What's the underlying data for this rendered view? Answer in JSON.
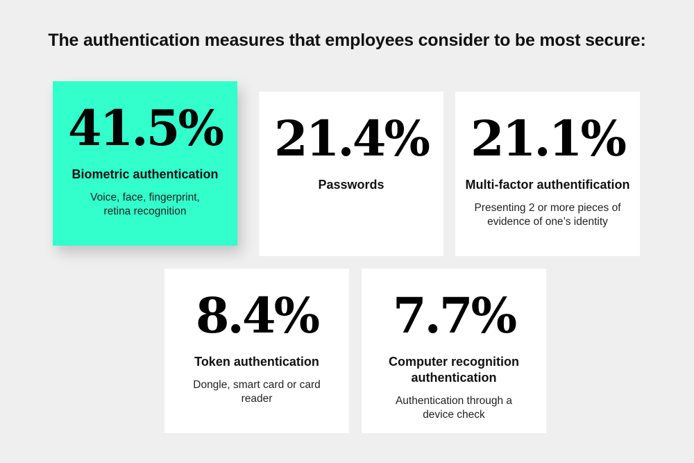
{
  "title": "The authentication measures that employees consider to be most secure:",
  "colors": {
    "background": "#efefef",
    "highlight": "#33ffcc",
    "card": "#ffffff"
  },
  "cards": [
    {
      "percent": "41.5%",
      "value": 41.5,
      "label": "Biometric authentication",
      "description": "Voice, face, fingerprint, retina recognition",
      "highlighted": true
    },
    {
      "percent": "21.4%",
      "value": 21.4,
      "label": "Passwords",
      "description": "",
      "highlighted": false
    },
    {
      "percent": "21.1%",
      "value": 21.1,
      "label": "Multi-factor authentification",
      "description": "Presenting 2 or more pieces of evidence of one’s identity",
      "highlighted": false
    },
    {
      "percent": "8.4%",
      "value": 8.4,
      "label": "Token authentication",
      "description": "Dongle, smart card or card reader",
      "highlighted": false
    },
    {
      "percent": "7.7%",
      "value": 7.7,
      "label": "Computer recognition authentication",
      "description": "Authentication through a device check",
      "highlighted": false
    }
  ]
}
